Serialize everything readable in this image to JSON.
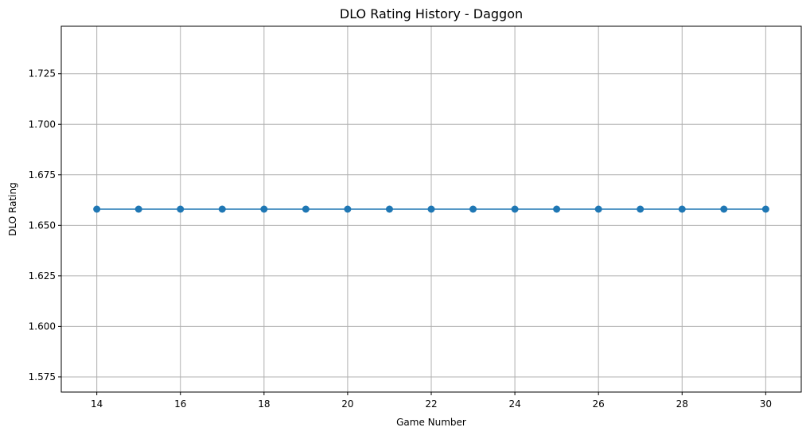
{
  "chart_data": {
    "type": "line",
    "title": "DLO Rating History - Daggon",
    "xlabel": "Game Number",
    "ylabel": "DLO Rating",
    "xlim": [
      13.15,
      30.85
    ],
    "ylim": [
      1.5675,
      1.7485
    ],
    "x_ticks": [
      14,
      16,
      18,
      20,
      22,
      24,
      26,
      28,
      30
    ],
    "y_ticks": [
      1.575,
      1.6,
      1.625,
      1.65,
      1.675,
      1.7,
      1.725
    ],
    "x_tick_labels": [
      "14",
      "16",
      "18",
      "20",
      "22",
      "24",
      "26",
      "28",
      "30"
    ],
    "y_tick_labels": [
      "1.575",
      "1.600",
      "1.625",
      "1.650",
      "1.675",
      "1.700",
      "1.725"
    ],
    "grid": true,
    "series": [
      {
        "color": "#1f77b4",
        "marker": "circle",
        "x": [
          14,
          15,
          16,
          17,
          18,
          19,
          20,
          21,
          22,
          23,
          24,
          25,
          26,
          27,
          28,
          29,
          30
        ],
        "y": [
          1.658,
          1.658,
          1.658,
          1.658,
          1.658,
          1.658,
          1.658,
          1.658,
          1.658,
          1.658,
          1.658,
          1.658,
          1.658,
          1.658,
          1.658,
          1.658,
          1.658
        ]
      }
    ]
  }
}
